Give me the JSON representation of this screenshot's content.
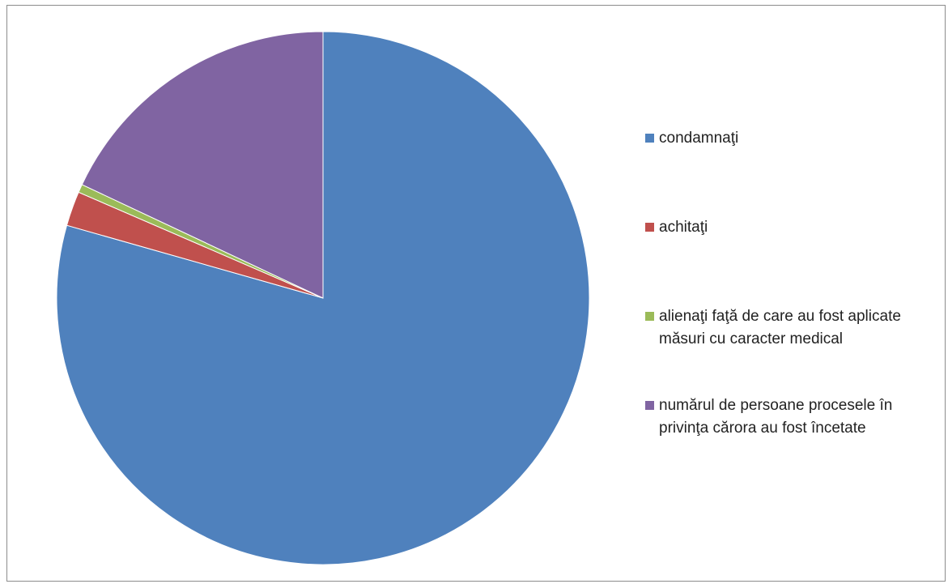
{
  "chart_data": {
    "type": "pie",
    "slices": [
      {
        "label": "condamnaţi",
        "value": 79.4,
        "color": "#4F81BD"
      },
      {
        "label": "achitaţi",
        "value": 2.1,
        "color": "#C0504D"
      },
      {
        "label": "alienaţi faţă de care au fost aplicate măsuri cu caracter medical",
        "value": 0.5,
        "color": "#9BBB59"
      },
      {
        "label": "numărul de persoane procesele în privinţa cărora au fost încetate",
        "value": 18.0,
        "color": "#8064A2"
      }
    ],
    "legend_position": "right",
    "start_angle": "12 o'clock",
    "direction": "clockwise"
  }
}
